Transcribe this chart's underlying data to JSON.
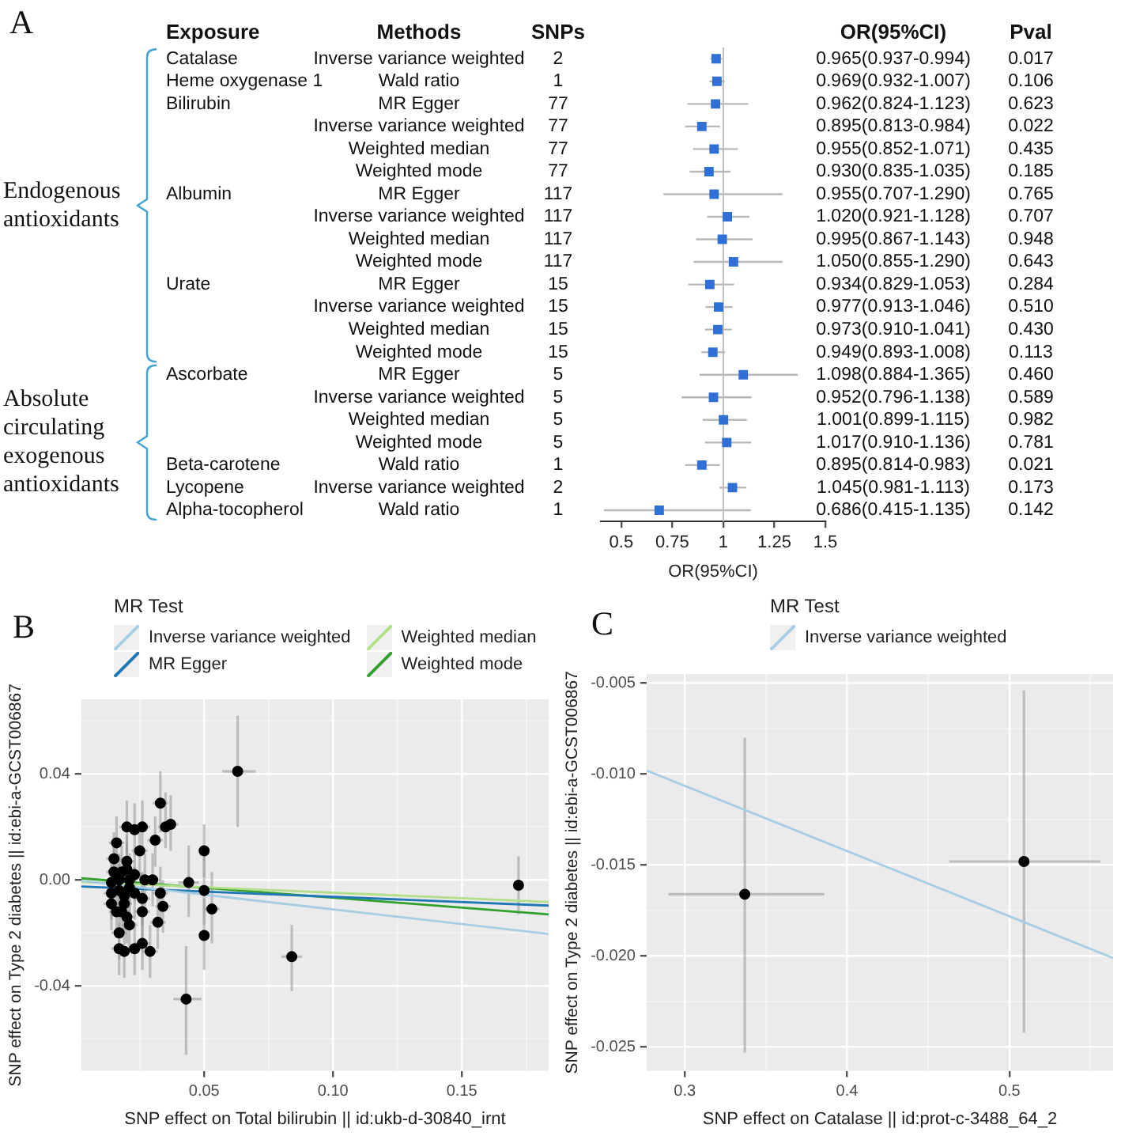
{
  "chart_data": [
    {
      "type": "scatter",
      "orientation": "horizontal",
      "marker": "square",
      "color": "#2f6fd6",
      "grid": false,
      "xlabel": "OR(95%CI)",
      "categories": [
        "Inverse variance weighted",
        "Wald ratio",
        "MR Egger",
        "Inverse variance weighted",
        "Weighted median",
        "Weighted mode",
        "MR Egger",
        "Inverse variance weighted",
        "Weighted median",
        "Weighted mode",
        "MR Egger",
        "Inverse variance weighted",
        "Weighted median",
        "Weighted mode",
        "MR Egger",
        "Inverse variance weighted",
        "Weighted median",
        "Weighted mode",
        "Wald ratio",
        "Inverse variance weighted",
        "Wald ratio"
      ],
      "values": [
        0.965,
        0.969,
        0.962,
        0.895,
        0.955,
        0.93,
        0.955,
        1.02,
        0.995,
        1.05,
        0.934,
        0.977,
        0.973,
        0.949,
        1.098,
        0.952,
        1.001,
        1.017,
        0.895,
        1.045,
        0.686
      ],
      "errors": [
        [
          0.937,
          0.994
        ],
        [
          0.932,
          1.007
        ],
        [
          0.824,
          1.123
        ],
        [
          0.813,
          0.984
        ],
        [
          0.852,
          1.071
        ],
        [
          0.835,
          1.035
        ],
        [
          0.707,
          1.29
        ],
        [
          0.921,
          1.128
        ],
        [
          0.867,
          1.143
        ],
        [
          0.855,
          1.29
        ],
        [
          0.829,
          1.053
        ],
        [
          0.913,
          1.046
        ],
        [
          0.91,
          1.041
        ],
        [
          0.893,
          1.008
        ],
        [
          0.884,
          1.365
        ],
        [
          0.796,
          1.138
        ],
        [
          0.899,
          1.115
        ],
        [
          0.91,
          1.136
        ],
        [
          0.814,
          0.983
        ],
        [
          0.981,
          1.113
        ],
        [
          0.415,
          1.135
        ]
      ],
      "value_labels": [
        "0.965(0.937-0.994)",
        "0.969(0.932-1.007)",
        "0.962(0.824-1.123)",
        "0.895(0.813-0.984)",
        "0.955(0.852-1.071)",
        "0.930(0.835-1.035)",
        "0.955(0.707-1.290)",
        "1.020(0.921-1.128)",
        "0.995(0.867-1.143)",
        "1.050(0.855-1.290)",
        "0.934(0.829-1.053)",
        "0.977(0.913-1.046)",
        "0.973(0.910-1.041)",
        "0.949(0.893-1.008)",
        "1.098(0.884-1.365)",
        "0.952(0.796-1.138)",
        "1.001(0.899-1.115)",
        "1.017(0.910-1.136)",
        "0.895(0.814-0.983)",
        "1.045(0.981-1.113)",
        "0.686(0.415-1.135)"
      ],
      "xlim": [
        0.4,
        1.5
      ],
      "xticks": [
        0.5,
        0.75,
        1,
        1.25,
        1.5
      ],
      "ref_lines": [
        {
          "axis": "x",
          "value": 1,
          "color": "#bdbdbd"
        }
      ],
      "annotations": [
        "A",
        "Exposure",
        "Methods",
        "SNPs",
        "OR(95%CI)",
        "Pval",
        "Endogenous antioxidants",
        "Absolute circulating exogenous antioxidants",
        "2",
        "1",
        "77",
        "77",
        "77",
        "77",
        "117",
        "117",
        "117",
        "117",
        "15",
        "15",
        "15",
        "15",
        "5",
        "5",
        "5",
        "5",
        "1",
        "2",
        "1",
        "0.017",
        "0.106",
        "0.623",
        "0.022",
        "0.435",
        "0.185",
        "0.765",
        "0.707",
        "0.948",
        "0.643",
        "0.284",
        "0.510",
        "0.430",
        "0.113",
        "0.460",
        "0.589",
        "0.982",
        "0.781",
        "0.021",
        "0.173",
        "0.142",
        "Catalase",
        "Heme oxygenase 1",
        "Bilirubin",
        "Albumin",
        "Urate",
        "Ascorbate",
        "Beta-carotene",
        "Lycopene",
        "Alpha-tocopherol"
      ]
    },
    {
      "type": "scatter",
      "title": "B",
      "grid": true,
      "legend": "top",
      "legend_title": "MR Test",
      "xlabel": "SNP effect on Total bilirubin || id:ukb-d-30840_irnt",
      "ylabel": "SNP effect on Type 2 diabetes || id:ebi-a-GCST006867",
      "xlim": [
        0.0023,
        0.1837
      ],
      "xticks": [
        {
          "value": 0.025,
          "label": null
        },
        {
          "value": 0.05,
          "label": "0.05"
        },
        {
          "value": 0.075,
          "label": null
        },
        {
          "value": 0.1,
          "label": "0.10"
        },
        {
          "value": 0.125,
          "label": null
        },
        {
          "value": 0.15,
          "label": "0.15"
        },
        {
          "value": 0.175,
          "label": null
        }
      ],
      "ylim": [
        -0.0721,
        0.0682
      ],
      "yticks": [
        {
          "value": -0.06,
          "label": null
        },
        {
          "value": -0.04,
          "label": "-0.04"
        },
        {
          "value": -0.02,
          "label": null
        },
        {
          "value": 0,
          "label": "0.00"
        },
        {
          "value": 0.02,
          "label": null
        },
        {
          "value": 0.04,
          "label": "0.04"
        },
        {
          "value": 0.06,
          "label": null
        }
      ],
      "series": [
        {
          "type": "scatter",
          "color": "#000000",
          "marker": "circle",
          "x": [
            0.063,
            0.043,
            0.084,
            0.172,
            0.05,
            0.044,
            0.05,
            0.05,
            0.053,
            0.033,
            0.035,
            0.037,
            0.031,
            0.026,
            0.023,
            0.02,
            0.025,
            0.03,
            0.033,
            0.034,
            0.032,
            0.029,
            0.026,
            0.023,
            0.026,
            0.026,
            0.021,
            0.02,
            0.017,
            0.017,
            0.019,
            0.016,
            0.015,
            0.02,
            0.015,
            0.018,
            0.02,
            0.023,
            0.014,
            0.017,
            0.021,
            0.027,
            0.014,
            0.019,
            0.021,
            0.016,
            0.018,
            0.019,
            0.014,
            0.017,
            0.023
          ],
          "values": [
            0.041,
            -0.045,
            -0.029,
            -0.002,
            0.011,
            -0.001,
            -0.004,
            -0.021,
            -0.011,
            0.029,
            0.02,
            0.021,
            0.015,
            0.02,
            0.019,
            0.02,
            0.011,
            0.0,
            -0.005,
            -0.01,
            -0.016,
            -0.027,
            -0.024,
            -0.026,
            -0.012,
            -0.007,
            -0.017,
            -0.014,
            -0.02,
            -0.026,
            -0.027,
            0.014,
            0.008,
            0.007,
            0.003,
            0.003,
            0.004,
            0.002,
            -0.001,
            0.0,
            0.0,
            0.0,
            -0.005,
            -0.006,
            -0.003,
            -0.012,
            -0.012,
            -0.009,
            -0.009,
            -0.004,
            -0.005
          ],
          "errors": [
            [
              0.02,
              0.062
            ],
            [
              -0.066,
              -0.025
            ],
            [
              -0.042,
              -0.017
            ],
            [
              -0.013,
              0.009
            ],
            [
              0.001,
              0.021
            ],
            [
              -0.014,
              0.013
            ],
            [
              -0.017,
              0.01
            ],
            [
              -0.034,
              -0.007
            ],
            [
              -0.024,
              0.003
            ],
            [
              0.018,
              0.041
            ],
            [
              0.012,
              0.033
            ],
            [
              0.011,
              0.032
            ],
            [
              0.005,
              0.024
            ],
            0.01,
            0.01,
            0.01,
            0.01,
            0.01,
            0.01,
            0.01,
            0.01,
            0.01,
            0.01,
            0.01,
            0.01,
            0.01,
            0.01,
            0.01,
            0.01,
            0.01,
            0.01,
            0.01,
            0.01,
            0.01,
            0.01,
            0.01,
            0.01,
            0.01,
            0.01,
            0.01,
            0.01,
            0.01,
            0.01,
            0.01,
            0.01,
            0.01,
            0.01,
            0.01,
            0.01,
            0.01,
            0.01
          ],
          "xerrors": [
            [
              0.057,
              0.07
            ],
            [
              0.038,
              0.049
            ],
            [
              0.08,
              0.088
            ],
            null,
            0.002,
            0.004,
            0.002,
            0.002,
            0.003,
            0.003,
            0.003,
            0.003,
            0.003,
            0.003,
            0.003,
            0.003,
            0.003,
            0.003,
            0.003,
            0.003,
            0.003,
            0.003,
            0.003,
            0.003,
            0.003,
            0.003,
            0.003,
            0.003,
            0.003,
            0.003,
            0.003,
            0.003,
            0.003,
            0.003,
            0.003,
            0.003,
            0.003,
            0.003,
            0.003,
            0.003,
            0.003,
            null,
            0.003,
            0.003,
            0.003,
            0.003,
            0.003,
            0.003,
            0.003,
            0.003,
            0.003
          ]
        },
        {
          "type": "line",
          "name": "Inverse variance weighted",
          "color": "#a6cee3",
          "x": [
            0.0023,
            0.1837
          ],
          "values": [
            -0.0003,
            -0.0204
          ]
        },
        {
          "type": "line",
          "name": "MR Egger",
          "color": "#1f78b4",
          "x": [
            0.0023,
            0.1837
          ],
          "values": [
            -0.0025,
            -0.0097
          ]
        },
        {
          "type": "line",
          "name": "Weighted median",
          "color": "#b2df8a",
          "x": [
            0.0023,
            0.1837
          ],
          "values": [
            -0.0008,
            -0.0083
          ]
        },
        {
          "type": "line",
          "name": "Weighted mode",
          "color": "#33a02c",
          "x": [
            0.0023,
            0.1837
          ],
          "values": [
            0.0006,
            -0.013
          ]
        }
      ]
    },
    {
      "type": "scatter",
      "title": "C",
      "grid": true,
      "legend": "top",
      "legend_title": "MR Test",
      "xlabel": "SNP effect on Catalase || id:prot-c-3488_64_2",
      "ylabel": "SNP effect on Type 2 diabetes || id:ebi-a-GCST006867",
      "xlim": [
        0.2765,
        0.5639
      ],
      "xticks": [
        {
          "value": 0.3,
          "label": "0.3"
        },
        {
          "value": 0.35,
          "label": null
        },
        {
          "value": 0.4,
          "label": "0.4"
        },
        {
          "value": 0.45,
          "label": null
        },
        {
          "value": 0.5,
          "label": "0.5"
        },
        {
          "value": 0.55,
          "label": null
        }
      ],
      "ylim": [
        -0.0263,
        -0.0045
      ],
      "yticks": [
        {
          "value": -0.025,
          "label": "-0.025"
        },
        {
          "value": -0.0225,
          "label": null
        },
        {
          "value": -0.02,
          "label": "-0.020"
        },
        {
          "value": -0.0175,
          "label": null
        },
        {
          "value": -0.015,
          "label": "-0.015"
        },
        {
          "value": -0.0125,
          "label": null
        },
        {
          "value": -0.01,
          "label": "-0.010"
        },
        {
          "value": -0.0075,
          "label": null
        },
        {
          "value": -0.005,
          "label": "-0.005"
        }
      ],
      "series": [
        {
          "type": "scatter",
          "color": "#000000",
          "marker": "circle",
          "x": [
            0.337,
            0.509
          ],
          "values": [
            -0.0166,
            -0.0148
          ],
          "errors": [
            [
              -0.0253,
              -0.008
            ],
            [
              -0.0242,
              -0.0054
            ]
          ],
          "xerrors": [
            [
              0.29,
              0.386
            ],
            [
              0.463,
              0.556
            ]
          ]
        },
        {
          "type": "line",
          "name": "Inverse variance weighted",
          "color": "#a6cee3",
          "x": [
            0.2765,
            0.5639
          ],
          "values": [
            -0.0098,
            -0.0201
          ]
        }
      ]
    }
  ]
}
